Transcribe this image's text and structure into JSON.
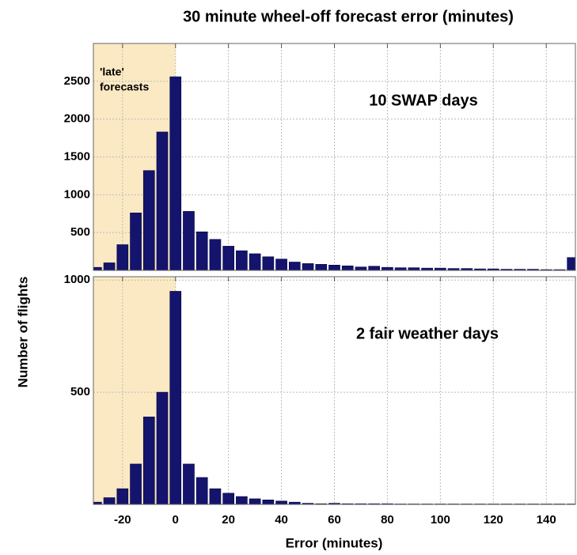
{
  "chart_data": [
    {
      "type": "histogram",
      "title": "30 minute wheel-off forecast error (minutes)",
      "ylabel": "Number of flights",
      "label": "10 SWAP days",
      "annotation": [
        "'late'",
        "forecasts"
      ],
      "span": [
        -31,
        0
      ],
      "span_color": "#fbe9c3",
      "color": "#14146e",
      "xlim": [
        -31,
        151
      ],
      "ylim": [
        0,
        3000
      ],
      "yticks": [
        500,
        1000,
        1500,
        2000,
        2500
      ],
      "xticks": [
        -20,
        0,
        20,
        40,
        60,
        80,
        100,
        120,
        140
      ],
      "grid": true,
      "bins": [
        -32.5,
        -27.5,
        -22.5,
        -17.5,
        -12.5,
        -7.5,
        -2.5,
        2.5,
        7.5,
        12.5,
        17.5,
        22.5,
        27.5,
        32.5,
        37.5,
        42.5,
        47.5,
        52.5,
        57.5,
        62.5,
        67.5,
        72.5,
        77.5,
        82.5,
        87.5,
        92.5,
        97.5,
        102.5,
        107.5,
        112.5,
        117.5,
        122.5,
        127.5,
        132.5,
        137.5,
        142.5,
        147.5,
        152.5
      ],
      "values": [
        40,
        100,
        340,
        760,
        1320,
        1830,
        2560,
        780,
        510,
        410,
        320,
        260,
        220,
        180,
        150,
        110,
        90,
        80,
        70,
        60,
        45,
        55,
        40,
        35,
        35,
        30,
        30,
        25,
        25,
        20,
        20,
        15,
        15,
        15,
        10,
        10,
        170
      ]
    },
    {
      "type": "histogram",
      "xlabel": "Error (minutes)",
      "label": "2 fair weather days",
      "span": [
        -31,
        0
      ],
      "span_color": "#fbe9c3",
      "color": "#14146e",
      "xlim": [
        -31,
        151
      ],
      "ylim": [
        0,
        1015
      ],
      "yticks": [
        500,
        1000
      ],
      "xticks": [
        -20,
        0,
        20,
        40,
        60,
        80,
        100,
        120,
        140
      ],
      "grid": true,
      "bins": [
        -32.5,
        -27.5,
        -22.5,
        -17.5,
        -12.5,
        -7.5,
        -2.5,
        2.5,
        7.5,
        12.5,
        17.5,
        22.5,
        27.5,
        32.5,
        37.5,
        42.5,
        47.5,
        52.5,
        57.5,
        62.5,
        67.5,
        72.5,
        77.5,
        82.5,
        87.5,
        92.5,
        97.5,
        102.5,
        107.5,
        112.5,
        117.5,
        122.5,
        127.5,
        132.5,
        137.5,
        142.5,
        147.5,
        152.5
      ],
      "values": [
        10,
        30,
        70,
        180,
        390,
        500,
        950,
        180,
        120,
        70,
        50,
        35,
        25,
        20,
        15,
        10,
        5,
        3,
        5,
        3,
        3,
        3,
        3,
        2,
        2,
        2,
        2,
        2,
        2,
        2,
        2,
        2,
        2,
        2,
        2,
        2,
        2
      ]
    }
  ]
}
